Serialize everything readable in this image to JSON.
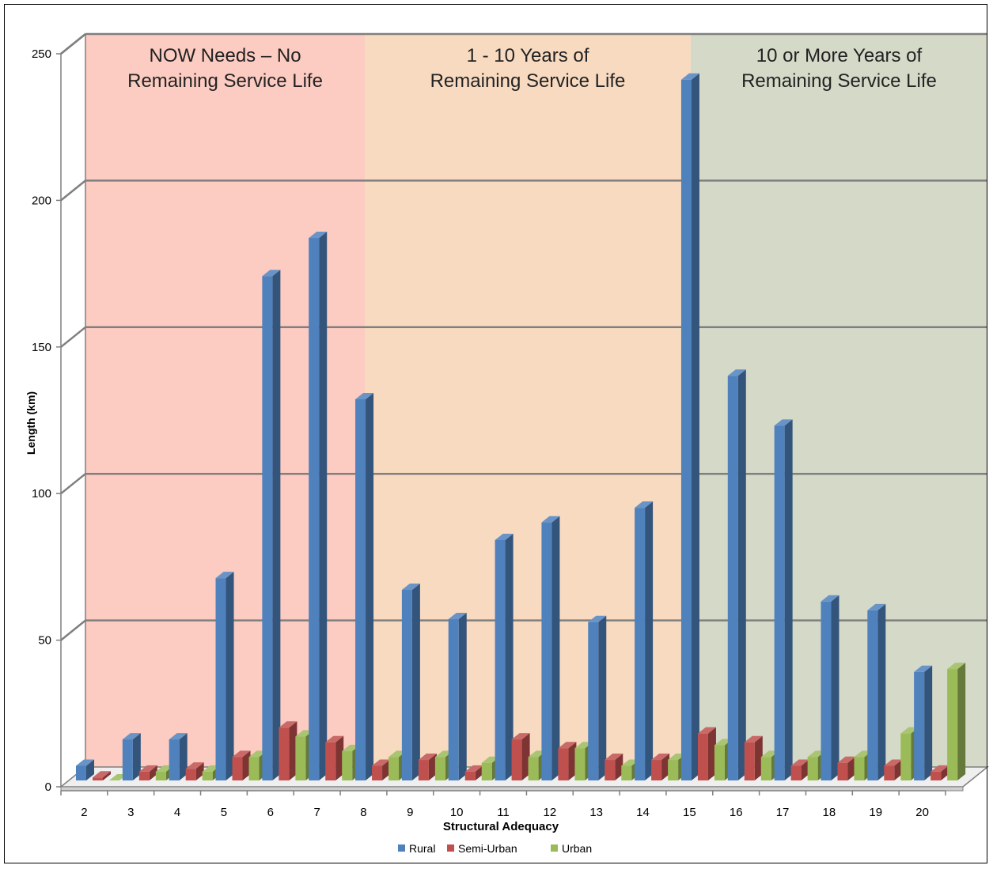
{
  "chart_data": {
    "type": "bar",
    "title": "",
    "xlabel": "Structural Adequacy",
    "ylabel": "Length (km)",
    "ylim": [
      0,
      250
    ],
    "yticks": [
      0,
      50,
      100,
      150,
      200,
      250
    ],
    "grid": true,
    "legend_position": "bottom",
    "categories": [
      "2",
      "3",
      "4",
      "5",
      "6",
      "7",
      "8",
      "9",
      "10",
      "11",
      "12",
      "13",
      "14",
      "15",
      "16",
      "17",
      "18",
      "19",
      "20"
    ],
    "series": [
      {
        "name": "Rural",
        "color": "#4f81bd",
        "values": [
          5,
          14,
          14,
          69,
          172,
          185,
          130,
          65,
          55,
          82,
          88,
          54,
          93,
          239,
          138,
          121,
          61,
          58,
          37
        ]
      },
      {
        "name": "Semi-Urban",
        "color": "#c0504d",
        "values": [
          1,
          3,
          4,
          8,
          18,
          13,
          5,
          7,
          3,
          14,
          11,
          7,
          7,
          16,
          13,
          5,
          6,
          5,
          3
        ]
      },
      {
        "name": "Urban",
        "color": "#9bbb59",
        "values": [
          0,
          3,
          3,
          8,
          15,
          10,
          8,
          8,
          6,
          8,
          11,
          5,
          7,
          12,
          8,
          8,
          8,
          16,
          38
        ]
      }
    ],
    "regions": [
      {
        "label_line1": "NOW Needs – No",
        "label_line2": "Remaining Service Life",
        "from_category": "2",
        "to_category": "7",
        "color": "#fccbc1"
      },
      {
        "label_line1": "1 - 10 Years of",
        "label_line2": "Remaining Service Life",
        "from_category": "8",
        "to_category": "14",
        "color": "#f8dac1"
      },
      {
        "label_line1": "10 or More Years of",
        "label_line2": "Remaining Service Life",
        "from_category": "15",
        "to_category": "20",
        "color": "#d4d9c8"
      }
    ]
  }
}
